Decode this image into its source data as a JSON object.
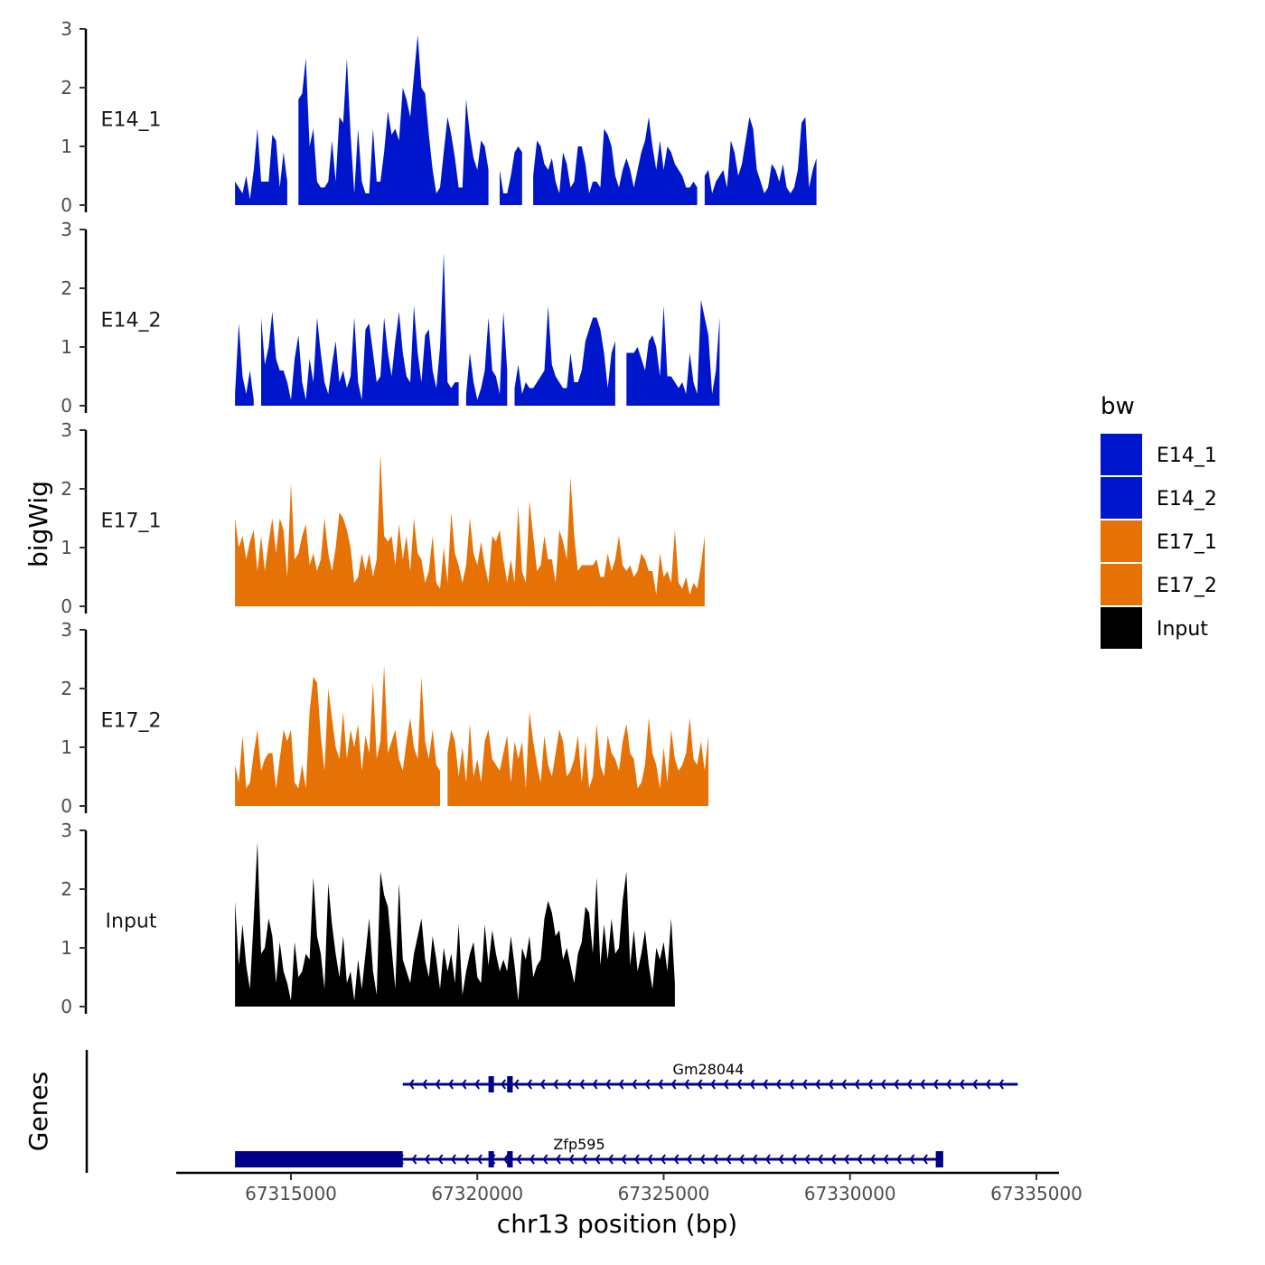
{
  "chart_data": {
    "type": "area",
    "chromosome": "chr13",
    "xlabel": "chr13 position (bp)",
    "ylabel": "bigWig",
    "xlim": [
      67313000,
      67335000
    ],
    "x_ticks": [
      {
        "value": 67315000,
        "label": "67315000"
      },
      {
        "value": 67320000,
        "label": "67320000"
      },
      {
        "value": 67325000,
        "label": "67325000"
      },
      {
        "value": 67330000,
        "label": "67330000"
      },
      {
        "value": 67335000,
        "label": "67335000"
      }
    ],
    "ylim": [
      0,
      3
    ],
    "y_ticks": [
      {
        "value": 0,
        "label": "0"
      },
      {
        "value": 1,
        "label": "1"
      },
      {
        "value": 2,
        "label": "2"
      },
      {
        "value": 3,
        "label": "3"
      }
    ],
    "legend": {
      "title": "bw",
      "position": "right",
      "entries": [
        {
          "label": "E14_1",
          "color": "#0016CC"
        },
        {
          "label": "E14_2",
          "color": "#0016CC"
        },
        {
          "label": "E17_1",
          "color": "#E67205"
        },
        {
          "label": "E17_2",
          "color": "#E67205"
        },
        {
          "label": "Input",
          "color": "#000000"
        }
      ]
    },
    "genes_track_label": "Genes",
    "x_start": 67313500,
    "x_step": 100,
    "series": [
      {
        "name": "E14_1",
        "label": "E14_1",
        "color": "#0016CC",
        "values": [
          0.4,
          0.3,
          0.2,
          0.5,
          0.1,
          0.6,
          1.3,
          0.4,
          0.4,
          0.4,
          1.2,
          1.1,
          0.3,
          0.9,
          0.4,
          null,
          null,
          1.8,
          1.9,
          2.5,
          1.0,
          1.3,
          0.4,
          0.3,
          0.3,
          0.4,
          1.1,
          0.4,
          1.5,
          1.4,
          2.5,
          1.2,
          0.2,
          1.3,
          0.4,
          0.2,
          0.2,
          1.3,
          0.4,
          0.4,
          0.9,
          1.6,
          1.2,
          1.3,
          1.1,
          2.0,
          1.8,
          1.5,
          2.2,
          2.9,
          2.0,
          1.9,
          1.2,
          0.6,
          0.2,
          0.3,
          0.9,
          1.5,
          1.2,
          0.8,
          0.3,
          0.3,
          1.8,
          1.2,
          0.8,
          0.6,
          1.1,
          1.0,
          0.6,
          null,
          null,
          0.6,
          0.2,
          0.2,
          0.5,
          0.9,
          1.0,
          0.9,
          null,
          null,
          0.5,
          1.1,
          1.0,
          0.7,
          0.6,
          0.8,
          0.4,
          0.2,
          0.9,
          0.7,
          0.3,
          0.4,
          1.0,
          1.0,
          0.7,
          0.2,
          0.4,
          0.4,
          0.3,
          1.3,
          1.2,
          1.0,
          0.5,
          0.3,
          0.6,
          0.8,
          0.6,
          0.3,
          0.6,
          0.9,
          1.1,
          1.5,
          1.0,
          0.6,
          1.1,
          0.6,
          1.0,
          0.9,
          0.7,
          0.6,
          0.5,
          0.3,
          0.3,
          0.4,
          0.3,
          null,
          0.5,
          0.6,
          0.2,
          0.4,
          0.5,
          0.6,
          0.3,
          1.1,
          0.9,
          0.5,
          0.7,
          1.1,
          1.5,
          1.3,
          0.6,
          0.4,
          0.2,
          0.3,
          0.7,
          0.6,
          0.4,
          0.7,
          0.3,
          0.2,
          0.3,
          0.6,
          1.4,
          1.5,
          0.3,
          0.6,
          0.8
        ]
      },
      {
        "name": "E14_2",
        "label": "E14_2",
        "color": "#0016CC",
        "values": [
          0.2,
          1.4,
          0.5,
          0.2,
          0.6,
          0.1,
          null,
          1.5,
          0.7,
          1.0,
          1.6,
          0.8,
          0.6,
          0.6,
          0.4,
          0.1,
          0.8,
          1.2,
          0.4,
          0.1,
          0.8,
          0.4,
          1.5,
          0.9,
          0.4,
          0.2,
          0.7,
          1.1,
          0.4,
          0.6,
          0.3,
          0.5,
          1.5,
          0.4,
          0.1,
          1.3,
          1.4,
          0.9,
          0.4,
          0.5,
          1.5,
          0.9,
          0.5,
          1.1,
          1.6,
          0.9,
          0.5,
          0.4,
          1.7,
          0.9,
          0.4,
          1.2,
          1.3,
          0.6,
          0.3,
          1.0,
          2.6,
          0.4,
          0.3,
          0.4,
          0.4,
          null,
          0.2,
          0.9,
          0.4,
          0.1,
          0.3,
          0.6,
          1.5,
          0.6,
          0.5,
          0.2,
          1.6,
          0.6,
          null,
          0.3,
          0.7,
          0.2,
          0.4,
          0.3,
          0.3,
          0.4,
          0.5,
          0.6,
          1.7,
          0.7,
          0.5,
          0.4,
          0.3,
          0.3,
          0.9,
          0.4,
          0.4,
          0.6,
          1.1,
          1.3,
          1.5,
          1.5,
          1.3,
          0.9,
          0.3,
          0.9,
          1.1,
          null,
          null,
          0.9,
          0.9,
          0.9,
          1.0,
          0.8,
          0.6,
          1.1,
          1.2,
          1.0,
          0.5,
          1.7,
          0.5,
          0.5,
          0.4,
          0.3,
          0.4,
          0.2,
          0.9,
          0.4,
          0.2,
          1.8,
          1.5,
          1.2,
          0.2,
          0.6,
          1.5
        ]
      },
      {
        "name": "E17_1",
        "label": "E17_1",
        "color": "#E67205",
        "values": [
          1.5,
          1.0,
          1.2,
          0.8,
          1.1,
          1.3,
          0.6,
          1.2,
          0.6,
          1.1,
          1.5,
          0.9,
          1.5,
          1.3,
          0.5,
          2.1,
          0.8,
          0.9,
          1.2,
          1.4,
          0.7,
          0.9,
          0.6,
          0.8,
          1.5,
          0.9,
          0.6,
          1.0,
          1.6,
          1.5,
          1.3,
          1.0,
          0.4,
          0.5,
          0.9,
          0.6,
          0.9,
          0.5,
          0.8,
          2.6,
          1.2,
          1.1,
          1.2,
          0.7,
          1.4,
          0.8,
          1.2,
          0.6,
          1.5,
          0.9,
          0.8,
          0.4,
          0.6,
          1.2,
          0.4,
          0.3,
          1.0,
          0.4,
          1.6,
          0.9,
          0.7,
          0.4,
          0.7,
          1.5,
          0.9,
          0.7,
          1.1,
          0.7,
          0.4,
          1.2,
          1.1,
          1.3,
          0.8,
          0.4,
          0.8,
          0.4,
          1.7,
          0.6,
          0.4,
          1.8,
          1.2,
          0.6,
          0.7,
          1.2,
          0.8,
          0.8,
          0.4,
          1.3,
          1.1,
          0.8,
          2.2,
          1.2,
          0.6,
          0.7,
          0.7,
          0.7,
          0.7,
          0.8,
          0.5,
          0.5,
          0.9,
          0.6,
          0.8,
          1.2,
          0.7,
          0.6,
          0.7,
          0.5,
          0.6,
          0.9,
          0.8,
          0.6,
          0.6,
          0.2,
          0.9,
          0.5,
          0.6,
          0.4,
          1.3,
          0.4,
          0.3,
          0.5,
          0.2,
          0.4,
          0.3,
          0.7,
          1.2
        ]
      },
      {
        "name": "E17_2",
        "label": "E17_2",
        "color": "#E67205",
        "values": [
          0.7,
          0.4,
          1.2,
          0.3,
          0.4,
          0.9,
          1.3,
          0.6,
          0.8,
          0.9,
          0.9,
          0.3,
          0.8,
          1.3,
          1.1,
          1.3,
          0.4,
          0.3,
          0.7,
          0.3,
          1.6,
          2.2,
          2.1,
          1.2,
          0.6,
          2.0,
          1.5,
          1.0,
          0.8,
          1.6,
          0.8,
          1.3,
          1.0,
          1.4,
          0.6,
          1.2,
          0.9,
          2.1,
          0.8,
          1.1,
          2.4,
          0.9,
          1.1,
          1.3,
          0.8,
          0.6,
          1.1,
          1.5,
          1.0,
          0.8,
          2.2,
          1.1,
          0.8,
          1.3,
          0.7,
          0.6,
          null,
          0.9,
          1.3,
          1.1,
          0.5,
          1.0,
          0.4,
          1.4,
          0.5,
          0.8,
          0.4,
          1.1,
          1.3,
          0.8,
          0.7,
          0.6,
          0.9,
          1.2,
          0.4,
          1.1,
          0.8,
          1.1,
          0.3,
          1.6,
          1.1,
          0.7,
          0.4,
          1.2,
          0.7,
          0.5,
          0.9,
          1.3,
          1.1,
          0.5,
          0.6,
          0.8,
          1.2,
          0.4,
          1.1,
          0.3,
          0.5,
          1.4,
          0.7,
          0.5,
          1.2,
          0.9,
          0.8,
          0.6,
          1.1,
          1.4,
          0.9,
          0.8,
          0.3,
          0.4,
          0.7,
          1.5,
          0.9,
          0.7,
          0.3,
          1.0,
          0.4,
          1.3,
          0.8,
          0.6,
          0.7,
          0.9,
          1.5,
          0.8,
          0.7,
          1.1,
          0.6,
          1.2
        ]
      },
      {
        "name": "Input",
        "label": "Input",
        "color": "#000000",
        "values": [
          1.8,
          0.7,
          1.4,
          0.7,
          0.3,
          1.5,
          2.8,
          0.9,
          1.0,
          1.5,
          1.2,
          0.4,
          1.1,
          0.6,
          0.4,
          0.1,
          1.1,
          0.5,
          0.6,
          0.9,
          0.8,
          2.2,
          1.2,
          0.9,
          0.3,
          2.1,
          1.4,
          0.9,
          0.5,
          1.2,
          0.4,
          0.6,
          0.1,
          0.8,
          0.3,
          0.9,
          1.5,
          0.6,
          0.2,
          2.3,
          1.9,
          1.7,
          1.0,
          0.3,
          2.1,
          0.8,
          0.6,
          0.4,
          0.9,
          1.2,
          1.5,
          0.8,
          0.5,
          1.2,
          0.8,
          0.3,
          1.0,
          0.6,
          0.9,
          0.4,
          1.4,
          0.2,
          0.6,
          0.9,
          1.1,
          0.5,
          0.4,
          1.4,
          0.7,
          1.3,
          0.9,
          0.6,
          0.8,
          0.6,
          1.2,
          0.7,
          0.1,
          1.0,
          0.8,
          1.2,
          0.5,
          0.7,
          0.8,
          1.5,
          1.8,
          1.6,
          1.2,
          1.3,
          0.8,
          1.0,
          0.7,
          0.4,
          0.9,
          1.1,
          1.7,
          1.6,
          0.9,
          2.2,
          0.7,
          1.4,
          0.8,
          1.5,
          0.9,
          1.0,
          1.8,
          2.3,
          0.7,
          1.3,
          0.6,
          0.9,
          1.3,
          0.7,
          0.3,
          1.0,
          0.8,
          1.1,
          0.6,
          1.5,
          0.4
        ]
      }
    ],
    "genes": [
      {
        "name": "Gm28044",
        "start": 67318000,
        "end": 67334500,
        "strand": "-",
        "exons": [
          {
            "start": 67320300,
            "end": 67320400
          },
          {
            "start": 67320800,
            "end": 67320950
          }
        ]
      },
      {
        "name": "Zfp595",
        "start": 67313500,
        "end": 67332500,
        "strand": "-",
        "exons": [
          {
            "start": 67313500,
            "end": 67318000
          },
          {
            "start": 67320300,
            "end": 67320400
          },
          {
            "start": 67320800,
            "end": 67320950
          },
          {
            "start": 67332300,
            "end": 67332500
          }
        ]
      }
    ]
  }
}
